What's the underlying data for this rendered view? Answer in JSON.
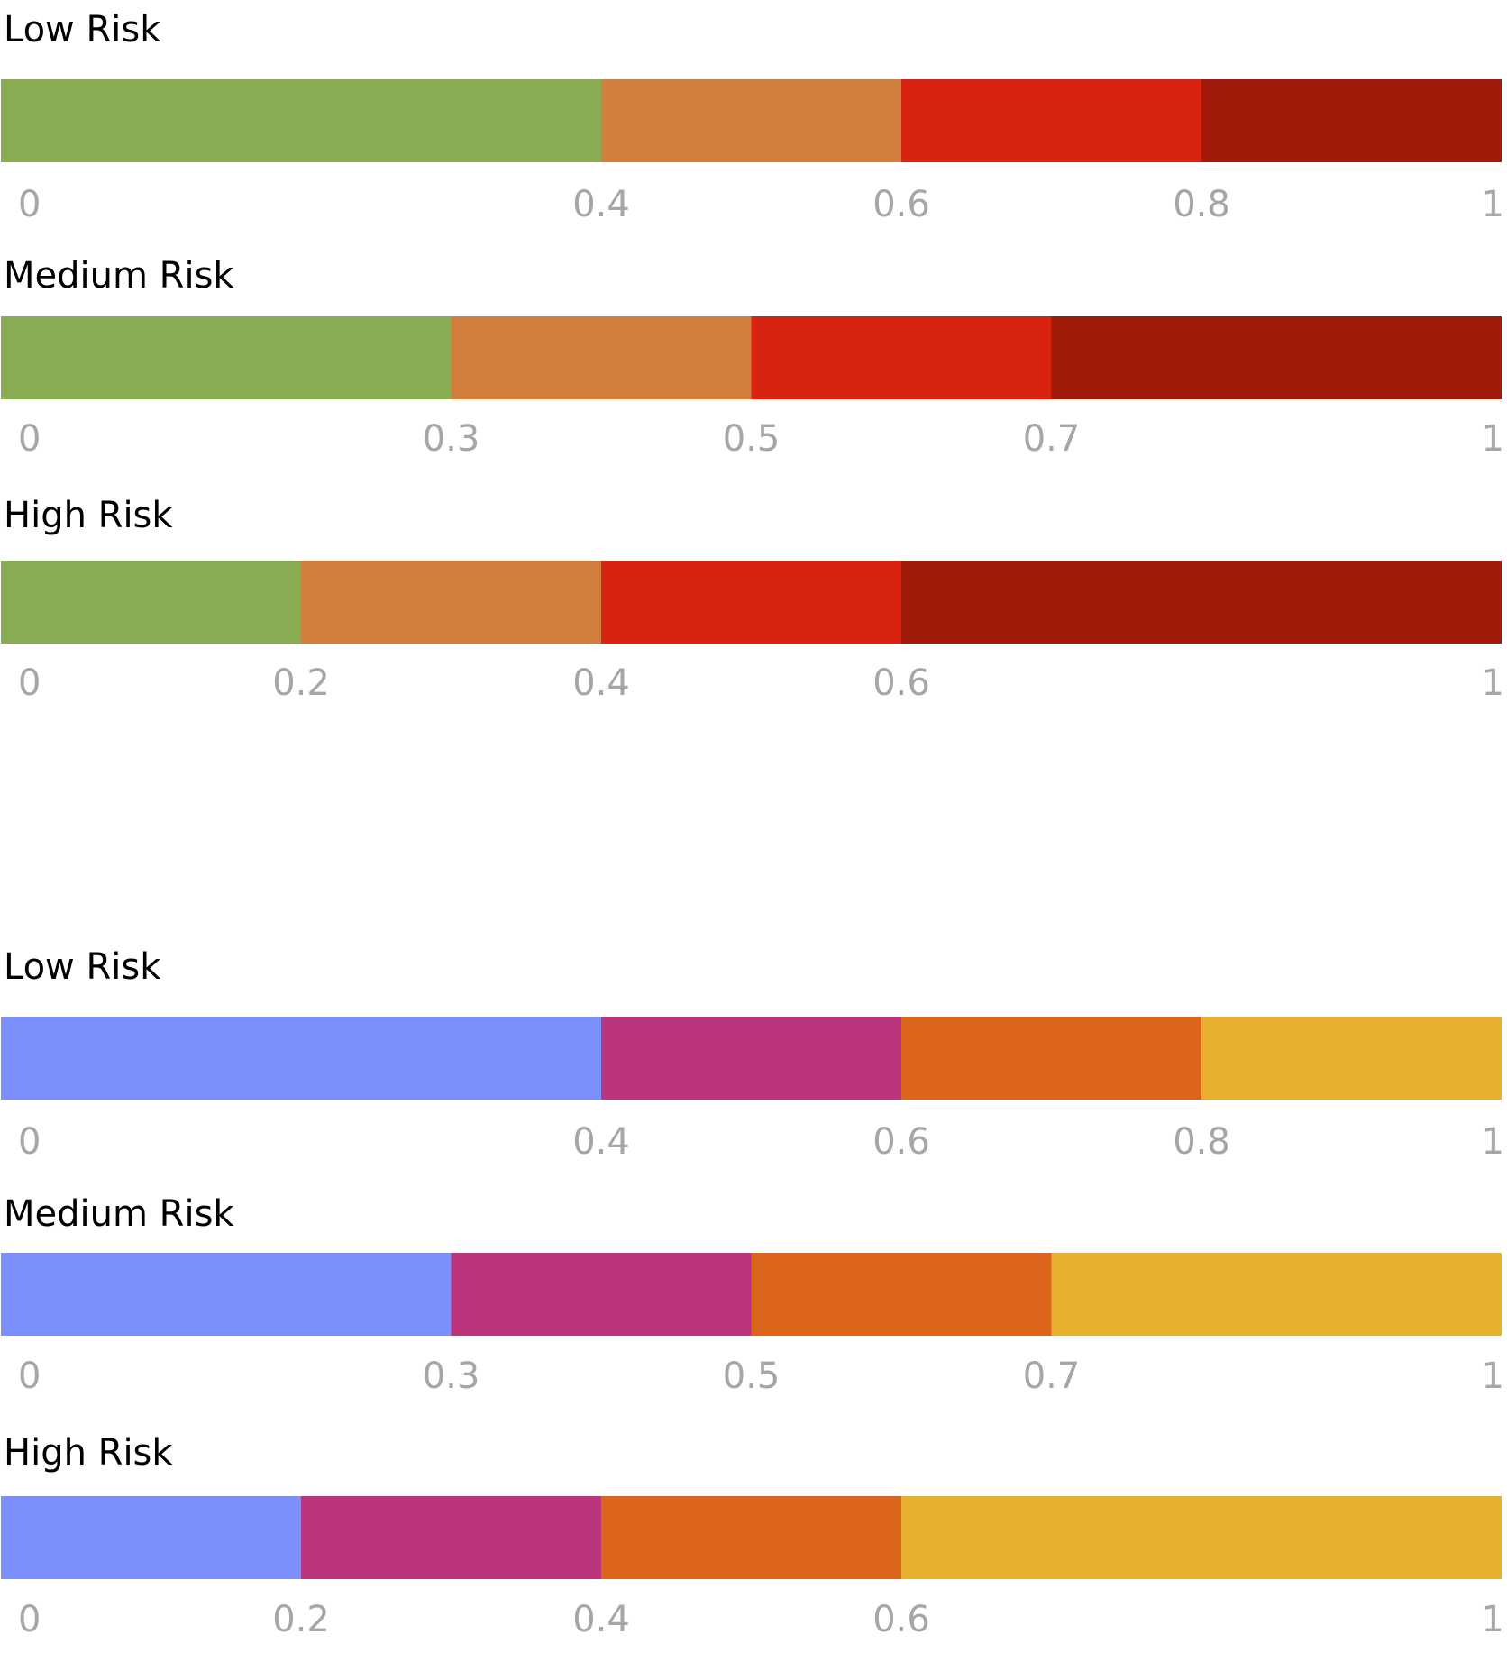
{
  "chart_data": [
    {
      "type": "bar",
      "orientation": "horizontal-stacked",
      "title": "",
      "xlim": [
        0,
        1
      ],
      "segment_colors": [
        "#8aac52",
        "#d27e3c",
        "#d82311",
        "#a11a0a"
      ],
      "rows": [
        {
          "label": "Low Risk",
          "thresholds": [
            0,
            0.4,
            0.6,
            0.8,
            1
          ],
          "tick_labels": [
            "0",
            "0.4",
            "0.6",
            "0.8",
            "1"
          ]
        },
        {
          "label": "Medium Risk",
          "thresholds": [
            0,
            0.3,
            0.5,
            0.7,
            1
          ],
          "tick_labels": [
            "0",
            "0.3",
            "0.5",
            "0.7",
            "1"
          ]
        },
        {
          "label": "High Risk",
          "thresholds": [
            0,
            0.2,
            0.4,
            0.6,
            1
          ],
          "tick_labels": [
            "0",
            "0.2",
            "0.4",
            "0.6",
            "1"
          ]
        }
      ]
    },
    {
      "type": "bar",
      "orientation": "horizontal-stacked",
      "title": "",
      "xlim": [
        0,
        1
      ],
      "segment_colors": [
        "#7b8ffd",
        "#bb357c",
        "#db651b",
        "#e7b02e"
      ],
      "rows": [
        {
          "label": "Low Risk",
          "thresholds": [
            0,
            0.4,
            0.6,
            0.8,
            1
          ],
          "tick_labels": [
            "0",
            "0.4",
            "0.6",
            "0.8",
            "1"
          ]
        },
        {
          "label": "Medium Risk",
          "thresholds": [
            0,
            0.3,
            0.5,
            0.7,
            1
          ],
          "tick_labels": [
            "0",
            "0.3",
            "0.5",
            "0.7",
            "1"
          ]
        },
        {
          "label": "High Risk",
          "thresholds": [
            0,
            0.2,
            0.4,
            0.6,
            1
          ],
          "tick_labels": [
            "0",
            "0.2",
            "0.4",
            "0.6",
            "1"
          ]
        }
      ]
    }
  ]
}
